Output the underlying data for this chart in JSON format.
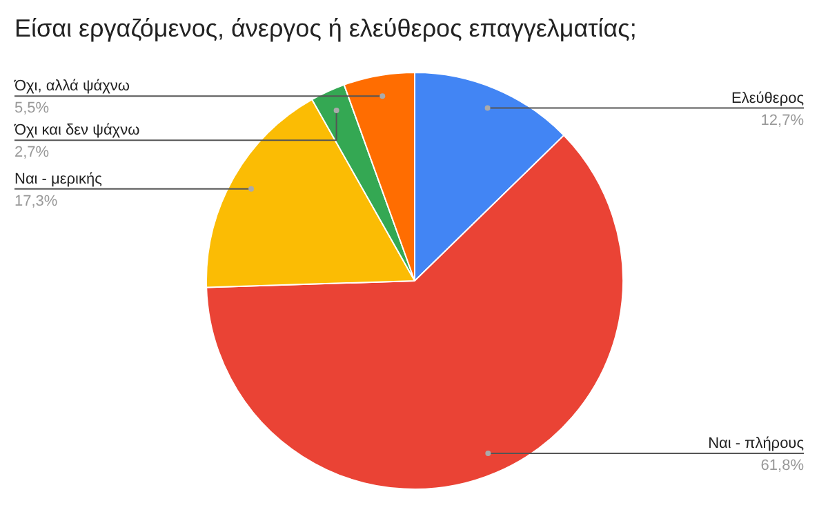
{
  "chart_data": {
    "type": "pie",
    "title": "Είσαι εργαζόμενος, άνεργος ή ελεύθερος επαγγελματίας;",
    "categories": [
      "Ελεύθερος",
      "Ναι - πλήρους",
      "Ναι - μερικής",
      "Όχι και δεν ψάχνω",
      "Όχι, αλλά ψάχνω"
    ],
    "values": [
      12.7,
      61.8,
      17.3,
      2.7,
      5.5
    ],
    "colors": [
      "#4285f4",
      "#ea4335",
      "#fbbc04",
      "#34a853",
      "#ff6d01"
    ],
    "value_labels": [
      "12,7%",
      "61,8%",
      "17,3%",
      "2,7%",
      "5,5%"
    ]
  }
}
